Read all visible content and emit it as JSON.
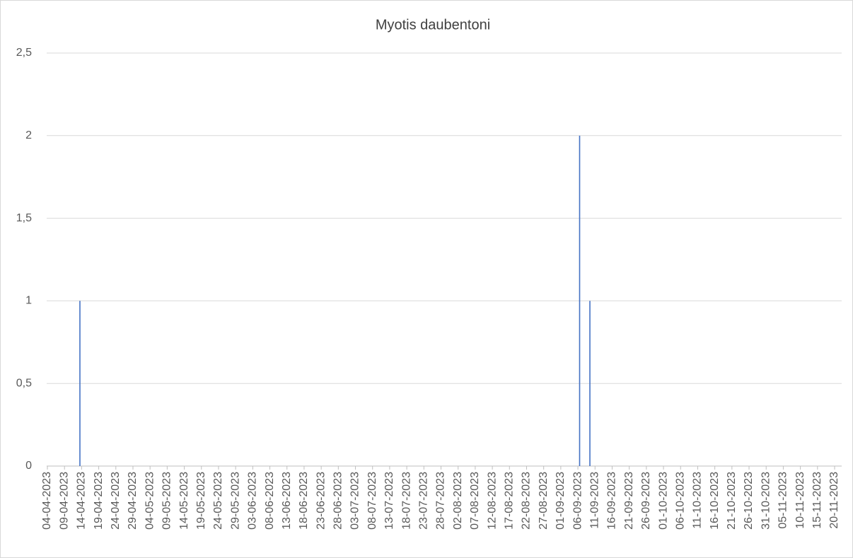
{
  "chart_data": {
    "type": "bar",
    "title": "Myotis daubentoni",
    "x": [
      "13-04-2023",
      "06-09-2023",
      "09-09-2023"
    ],
    "values": [
      1,
      2,
      1
    ],
    "color": "#4472c4",
    "xlim": [
      "04-04-2023",
      "20-11-2023"
    ],
    "xticks": [
      "04-04-2023",
      "09-04-2023",
      "14-04-2023",
      "19-04-2023",
      "24-04-2023",
      "29-04-2023",
      "04-05-2023",
      "09-05-2023",
      "14-05-2023",
      "19-05-2023",
      "24-05-2023",
      "29-05-2023",
      "03-06-2023",
      "08-06-2023",
      "13-06-2023",
      "18-06-2023",
      "23-06-2023",
      "28-06-2023",
      "03-07-2023",
      "08-07-2023",
      "13-07-2023",
      "18-07-2023",
      "23-07-2023",
      "28-07-2023",
      "02-08-2023",
      "07-08-2023",
      "12-08-2023",
      "17-08-2023",
      "22-08-2023",
      "27-08-2023",
      "01-09-2023",
      "06-09-2023",
      "11-09-2023",
      "16-09-2023",
      "21-09-2023",
      "26-09-2023",
      "01-10-2023",
      "06-10-2023",
      "11-10-2023",
      "16-10-2023",
      "21-10-2023",
      "26-10-2023",
      "31-10-2023",
      "05-11-2023",
      "10-11-2023",
      "15-11-2023",
      "20-11-2023"
    ],
    "ylim": [
      0,
      2.5
    ],
    "yticks": [
      0,
      {
        "value": 0.5,
        "label": "0,5"
      },
      1,
      {
        "value": 1.5,
        "label": "1,5"
      },
      2,
      {
        "value": 2.5,
        "label": "2,5"
      }
    ],
    "grid": true
  }
}
